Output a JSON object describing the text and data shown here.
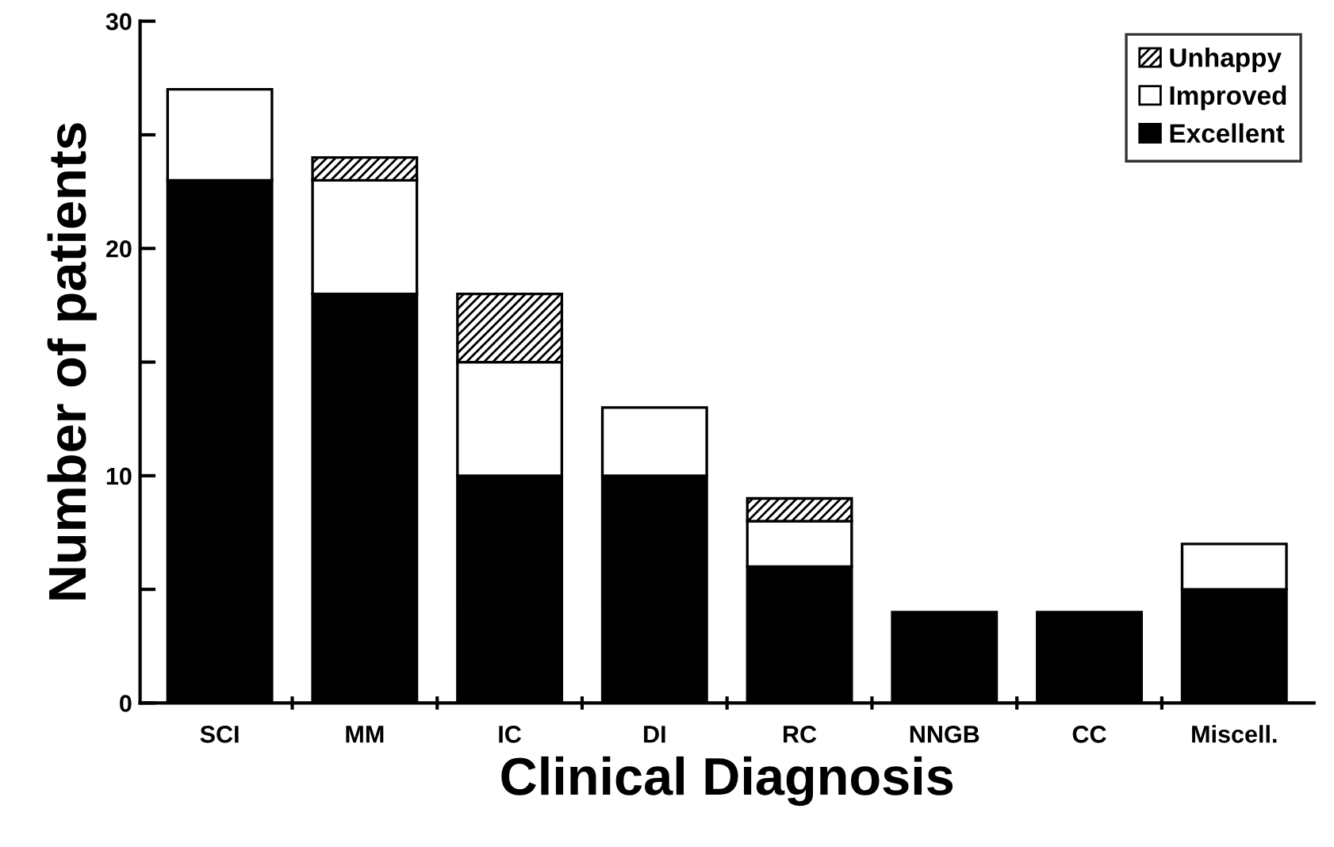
{
  "chart_data": {
    "type": "bar",
    "stacked": true,
    "xlabel": "Clinical Diagnosis",
    "ylabel": "Number of patients",
    "categories": [
      "SCI",
      "MM",
      "IC",
      "DI",
      "RC",
      "NNGB",
      "CC",
      "Miscell."
    ],
    "series": [
      {
        "name": "Excellent",
        "color": "#000000",
        "values": [
          23,
          18,
          10,
          10,
          6,
          4,
          4,
          5
        ]
      },
      {
        "name": "Improved",
        "color": "#ffffff",
        "values": [
          4,
          5,
          5,
          3,
          2,
          0,
          0,
          2
        ]
      },
      {
        "name": "Unhappy",
        "color": "#000000",
        "values": [
          0,
          1,
          3,
          0,
          1,
          0,
          0,
          0
        ]
      }
    ],
    "ylim": [
      0,
      30
    ],
    "yticks": [
      0,
      {
        "value": 5,
        "label": null
      },
      10,
      {
        "value": 15,
        "label": null
      },
      20,
      {
        "value": 25,
        "label": null
      },
      30
    ],
    "grid": false,
    "legend": "top right"
  }
}
